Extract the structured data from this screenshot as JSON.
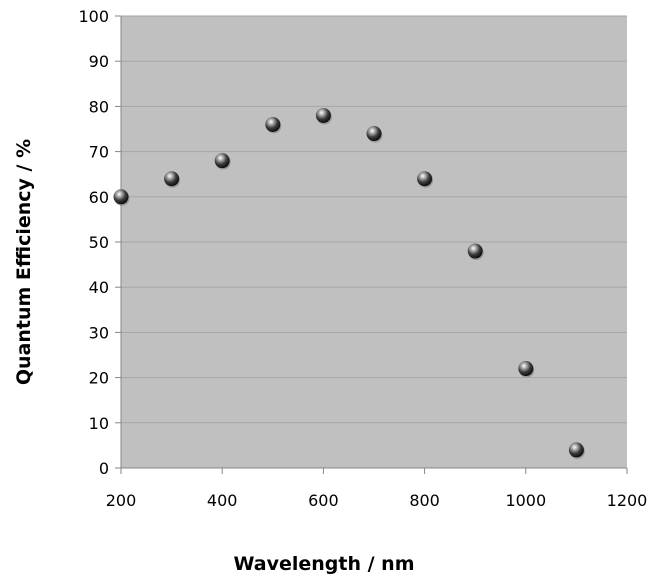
{
  "chart_data": {
    "type": "scatter",
    "title": "",
    "xlabel": "Wavelength / nm",
    "ylabel": "Quantum Efficiency / %",
    "xlim": [
      200,
      1200
    ],
    "ylim": [
      0,
      100
    ],
    "x_ticks": [
      "200",
      "400",
      "600",
      "800",
      "1000",
      "1200"
    ],
    "y_ticks": [
      "0",
      "10",
      "20",
      "30",
      "40",
      "50",
      "60",
      "70",
      "80",
      "90",
      "100"
    ],
    "grid": true,
    "legend": "none",
    "series": [
      {
        "x": [
          200,
          300,
          400,
          500,
          600,
          700,
          800,
          900,
          1000,
          1100
        ],
        "y": [
          60,
          64,
          68,
          76,
          78,
          74,
          64,
          48,
          22,
          4
        ]
      }
    ],
    "colors": {
      "plot_background": "#c0c0c0",
      "gridline": "#a6a6a6",
      "axis": "#868686",
      "marker": "#4a4a4a"
    }
  }
}
